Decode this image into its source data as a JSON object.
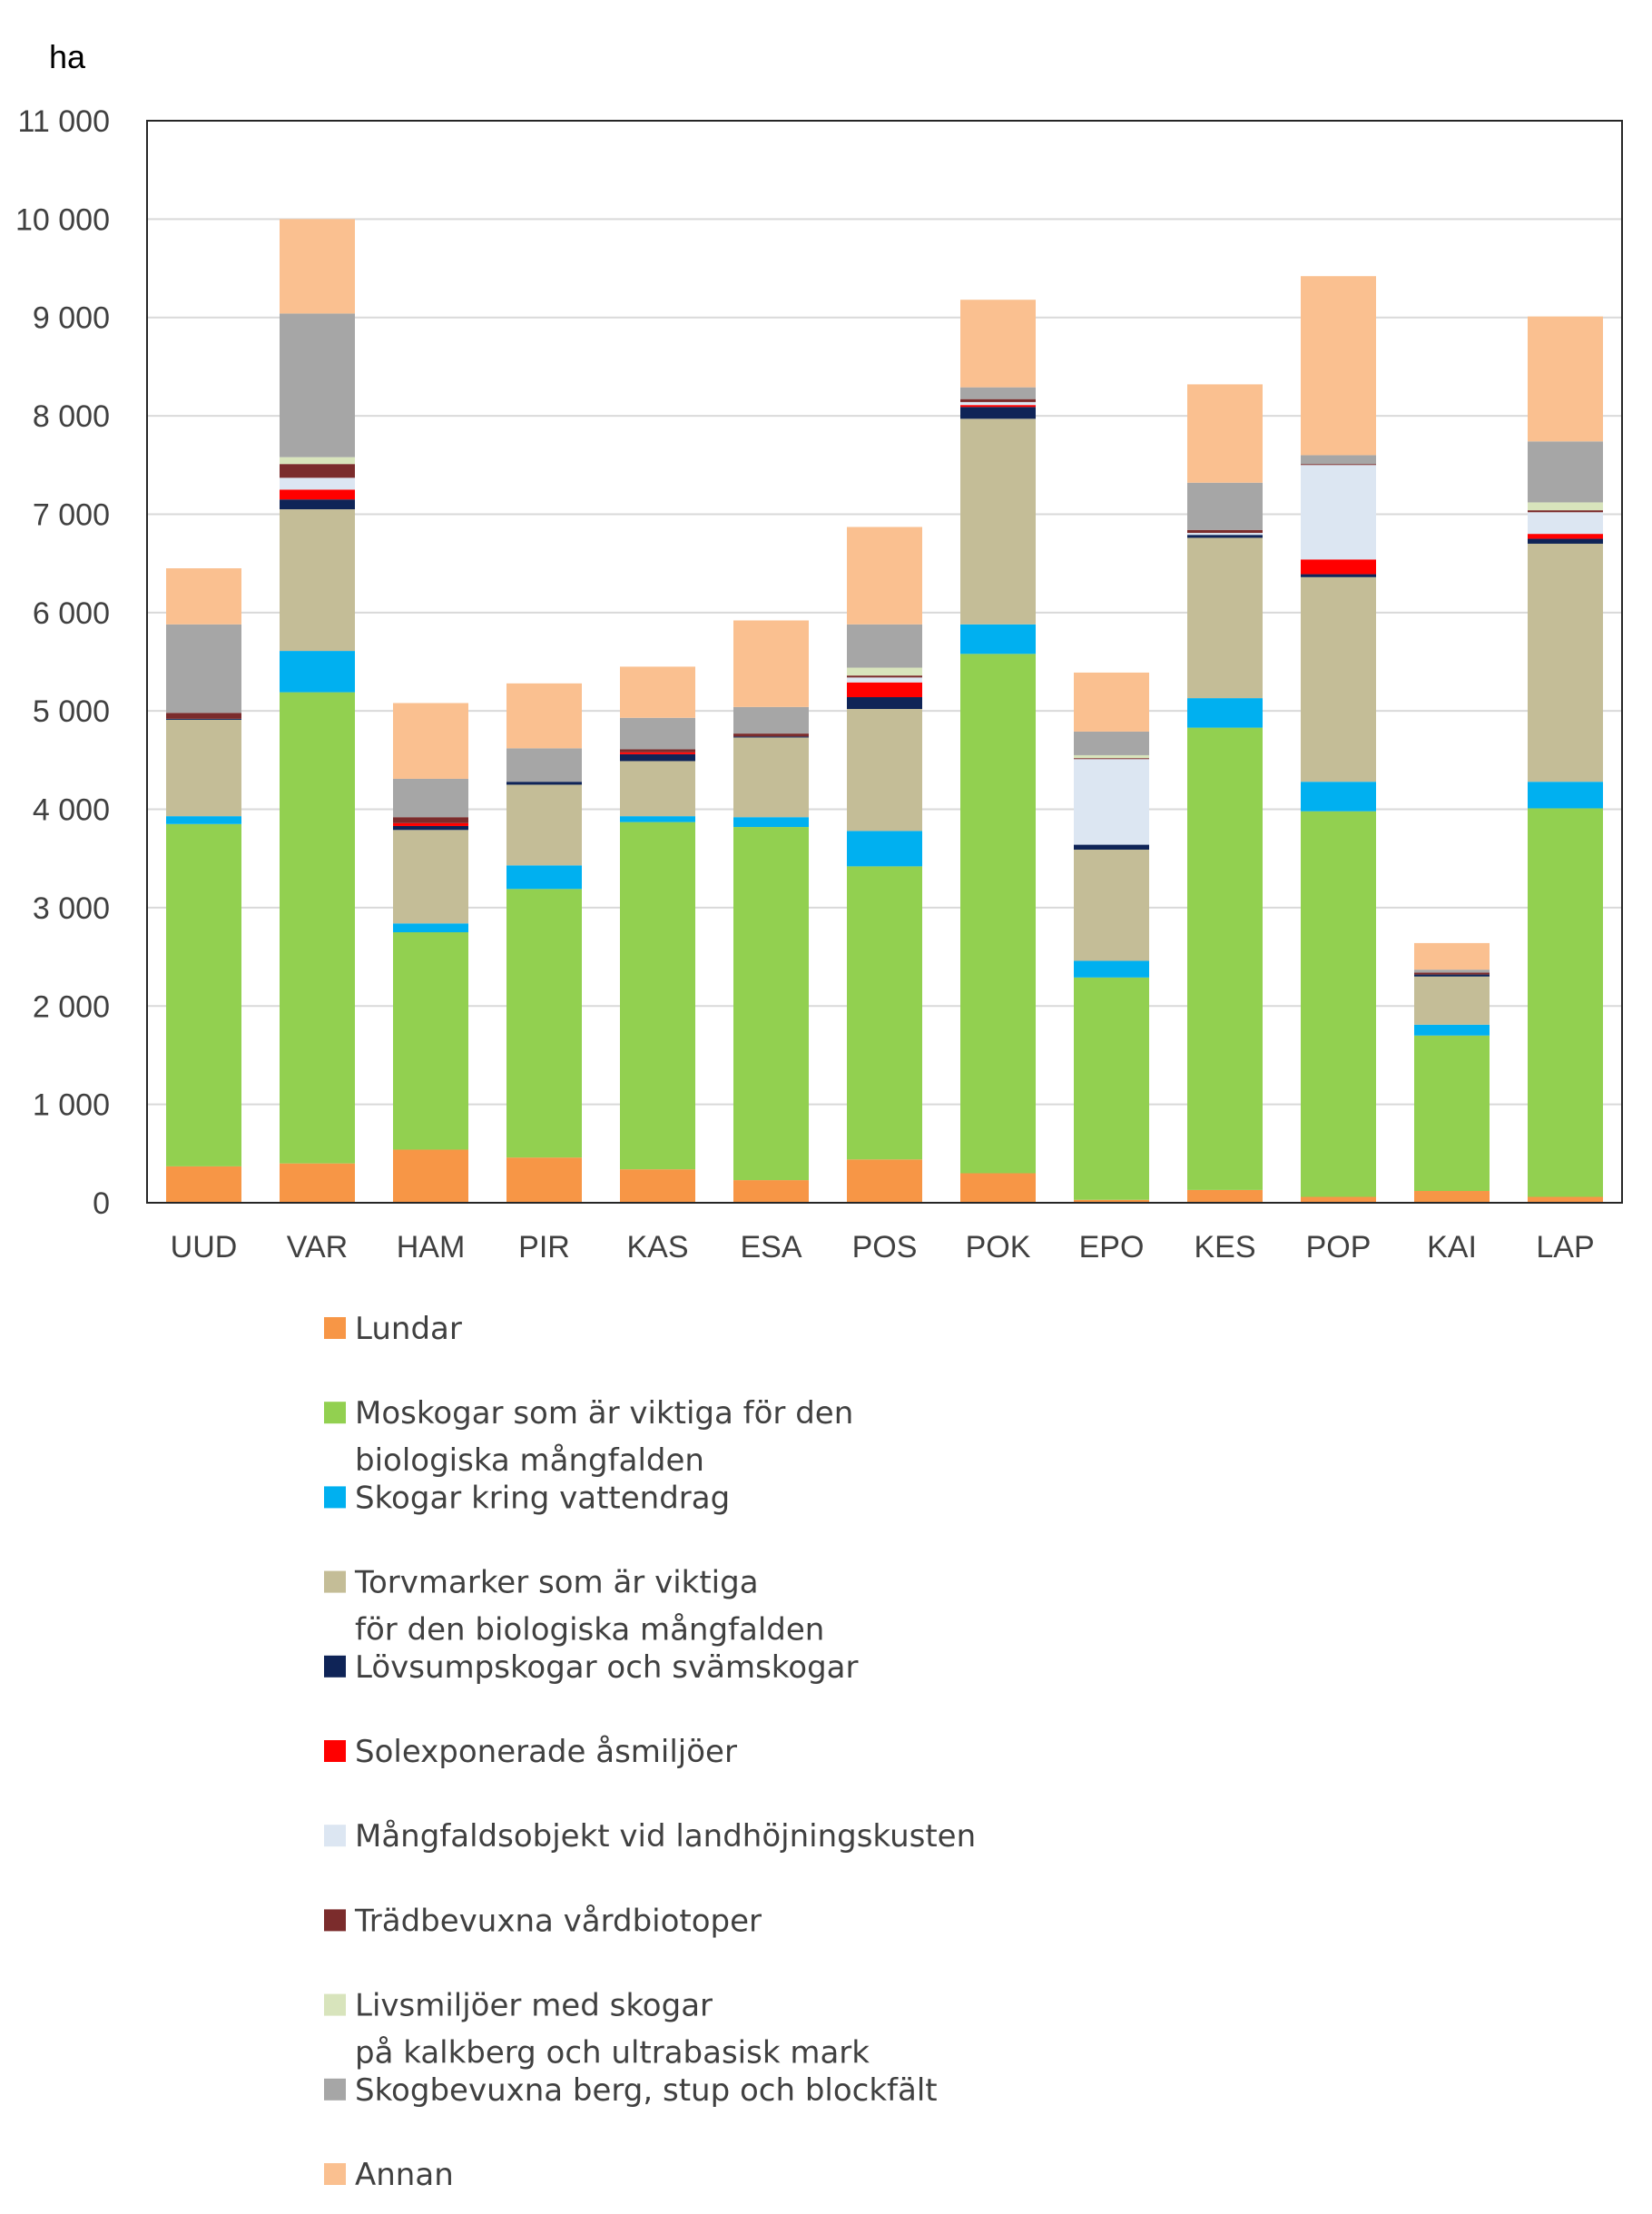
{
  "chart_data": {
    "type": "bar",
    "stacked": true,
    "title": "",
    "xlabel": "",
    "ylabel": "ha",
    "ylim": [
      0,
      11000
    ],
    "ytick_values": [
      0,
      1000,
      2000,
      3000,
      4000,
      5000,
      6000,
      7000,
      8000,
      9000,
      10000,
      11000
    ],
    "ytick_labels": [
      "0",
      "1 000",
      "2 000",
      "3 000",
      "4 000",
      "5 000",
      "6 000",
      "7 000",
      "8 000",
      "9 000",
      "10 000",
      "11 000"
    ],
    "grid": true,
    "legend_position": "bottom",
    "categories": [
      "UUD",
      "VAR",
      "HAM",
      "PIR",
      "KAS",
      "ESA",
      "POS",
      "POK",
      "EPO",
      "KES",
      "POP",
      "KAI",
      "LAP"
    ],
    "series": [
      {
        "name": "Lundar",
        "color": "#F79646",
        "values": [
          370,
          400,
          540,
          460,
          340,
          230,
          440,
          300,
          30,
          130,
          60,
          120,
          60
        ]
      },
      {
        "name": [
          "Moskogar som är viktiga för den",
          "biologiska mångfalden"
        ],
        "color": "#92D050",
        "values": [
          3480,
          4790,
          2210,
          2730,
          3530,
          3590,
          2980,
          5280,
          2260,
          4700,
          3920,
          1580,
          3950
        ]
      },
      {
        "name": "Skogar kring vattendrag",
        "color": "#00B0F0",
        "values": [
          80,
          420,
          90,
          240,
          60,
          100,
          360,
          300,
          170,
          300,
          300,
          110,
          270
        ]
      },
      {
        "name": [
          "Torvmarker som är viktiga",
          "för den biologiska mångfalden"
        ],
        "color": "#C4BD97",
        "values": [
          980,
          1440,
          950,
          820,
          560,
          810,
          1240,
          2090,
          1130,
          1630,
          2080,
          490,
          2420
        ]
      },
      {
        "name": "Lövsumpskogar och svämskogar",
        "color": "#0F2457",
        "values": [
          10,
          100,
          40,
          30,
          70,
          10,
          120,
          120,
          50,
          30,
          30,
          20,
          50
        ]
      },
      {
        "name": "Solexponerade åsmiljöer",
        "color": "#FF0000",
        "values": [
          0,
          100,
          30,
          0,
          20,
          0,
          150,
          20,
          0,
          0,
          150,
          0,
          50
        ]
      },
      {
        "name": "Mångfaldsobjekt vid landhöjningskusten",
        "color": "#DCE6F2",
        "values": [
          0,
          120,
          0,
          0,
          0,
          0,
          50,
          30,
          870,
          20,
          960,
          0,
          220
        ]
      },
      {
        "name": "Trädbevuxna vårdbiotoper",
        "color": "#7B2C2C",
        "values": [
          60,
          140,
          60,
          0,
          30,
          30,
          20,
          30,
          10,
          30,
          10,
          20,
          20
        ]
      },
      {
        "name": [
          "Livsmiljöer med skogar",
          "på kalkberg och ultrabasisk mark"
        ],
        "color": "#D8E4BC",
        "values": [
          0,
          70,
          0,
          0,
          0,
          0,
          80,
          0,
          30,
          0,
          0,
          0,
          80
        ]
      },
      {
        "name": "Skogbevuxna berg, stup och blockfält",
        "color": "#A6A6A6",
        "values": [
          900,
          1460,
          390,
          340,
          320,
          270,
          440,
          120,
          240,
          480,
          90,
          30,
          620
        ]
      },
      {
        "name": "Annan",
        "color": "#FAC090",
        "values": [
          570,
          960,
          770,
          660,
          520,
          880,
          990,
          890,
          600,
          1000,
          1820,
          270,
          1270
        ]
      }
    ]
  }
}
